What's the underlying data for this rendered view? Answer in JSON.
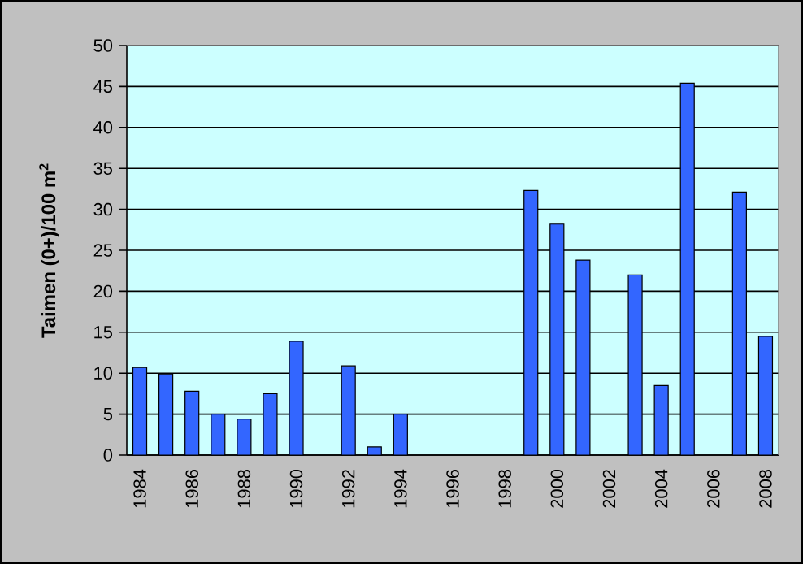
{
  "chart_data": {
    "type": "bar",
    "ylabel": "Taimen (0+)/100 m$^{2}$",
    "categories": [
      "1984",
      null,
      "1986",
      null,
      "1988",
      null,
      "1990",
      null,
      "1992",
      null,
      "1994",
      null,
      "1996",
      null,
      "1998",
      null,
      "2000",
      null,
      "2002",
      null,
      "2004",
      null,
      "2006",
      null,
      "2008"
    ],
    "values": [
      10.7,
      9.9,
      7.8,
      5.0,
      4.4,
      7.5,
      13.9,
      null,
      10.9,
      1.0,
      5.0,
      null,
      null,
      null,
      null,
      32.3,
      28.2,
      23.8,
      null,
      22.0,
      8.5,
      45.4,
      null,
      32.1,
      14.5
    ],
    "color": "#3366ff",
    "ylim": [
      0,
      50
    ],
    "yticks": [
      0,
      5,
      10,
      15,
      20,
      25,
      30,
      35,
      40,
      45,
      50
    ],
    "grid": "y"
  }
}
